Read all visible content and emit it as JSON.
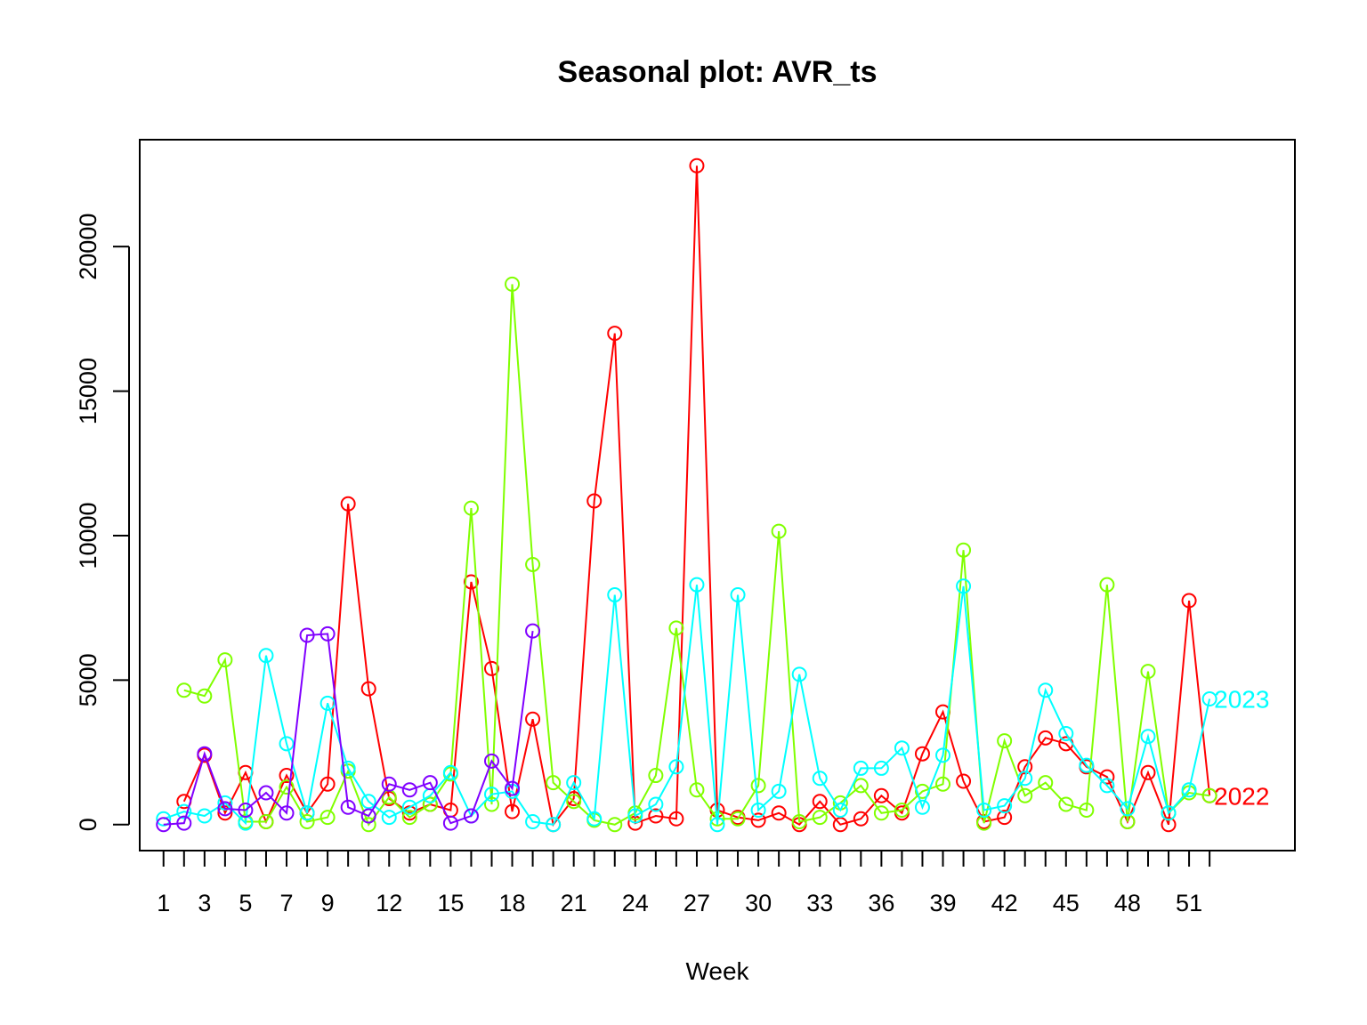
{
  "chart_data": {
    "type": "line",
    "title": "Seasonal plot: AVR_ts",
    "xlabel": "Week",
    "ylabel": "",
    "xlim": [
      -0.16,
      56.16
    ],
    "ylim": [
      -900,
      23700
    ],
    "x_tick_labels": [
      1,
      3,
      5,
      7,
      9,
      12,
      15,
      18,
      21,
      24,
      27,
      30,
      33,
      36,
      39,
      42,
      45,
      48,
      51
    ],
    "y_tick_labels": [
      0,
      5000,
      10000,
      15000,
      20000
    ],
    "series": [
      {
        "color": "#ff0000",
        "end_label": "2022",
        "values": [
          null,
          800,
          2400,
          400,
          1800,
          100,
          1700,
          400,
          1400,
          11100,
          4700,
          900,
          400,
          700,
          500,
          8400,
          5400,
          450,
          3650,
          0,
          900,
          11200,
          17000,
          50,
          300,
          200,
          22800,
          500,
          250,
          150,
          400,
          0,
          800,
          0,
          200,
          1000,
          400,
          2450,
          3900,
          1500,
          100,
          250,
          2000,
          3000,
          2800,
          2000,
          1650,
          100,
          1800,
          0,
          7750,
          1000
        ]
      },
      {
        "color": "#80ff00",
        "values": [
          null,
          4650,
          4450,
          5700,
          100,
          100,
          1300,
          100,
          250,
          1850,
          0,
          950,
          250,
          700,
          1750,
          10950,
          700,
          18700,
          9000,
          1450,
          800,
          150,
          0,
          400,
          1700,
          6800,
          1200,
          200,
          200,
          1350,
          10150,
          100,
          250,
          750,
          1350,
          400,
          500,
          1150,
          1400,
          9500,
          50,
          2900,
          1000,
          1450,
          700,
          500,
          8300,
          100,
          5300,
          400,
          1100,
          1000
        ]
      },
      {
        "color": "#00ffff",
        "end_label": "2023",
        "values": [
          200,
          450,
          300,
          750,
          50,
          5850,
          2800,
          400,
          4200,
          1950,
          800,
          250,
          600,
          1000,
          1800,
          300,
          1050,
          1150,
          100,
          0,
          1450,
          200,
          7950,
          300,
          700,
          2000,
          8300,
          0,
          7950,
          500,
          1150,
          5200,
          1600,
          500,
          1950,
          1950,
          2650,
          600,
          2400,
          8250,
          500,
          650,
          1600,
          4650,
          3150,
          2050,
          1350,
          550,
          3050,
          400,
          1200,
          4350
        ]
      },
      {
        "color": "#8000ff",
        "values": [
          0,
          50,
          2450,
          550,
          500,
          1100,
          400,
          6550,
          6600,
          600,
          300,
          1400,
          1200,
          1450,
          50,
          300,
          2200,
          1250,
          6700
        ]
      }
    ]
  }
}
